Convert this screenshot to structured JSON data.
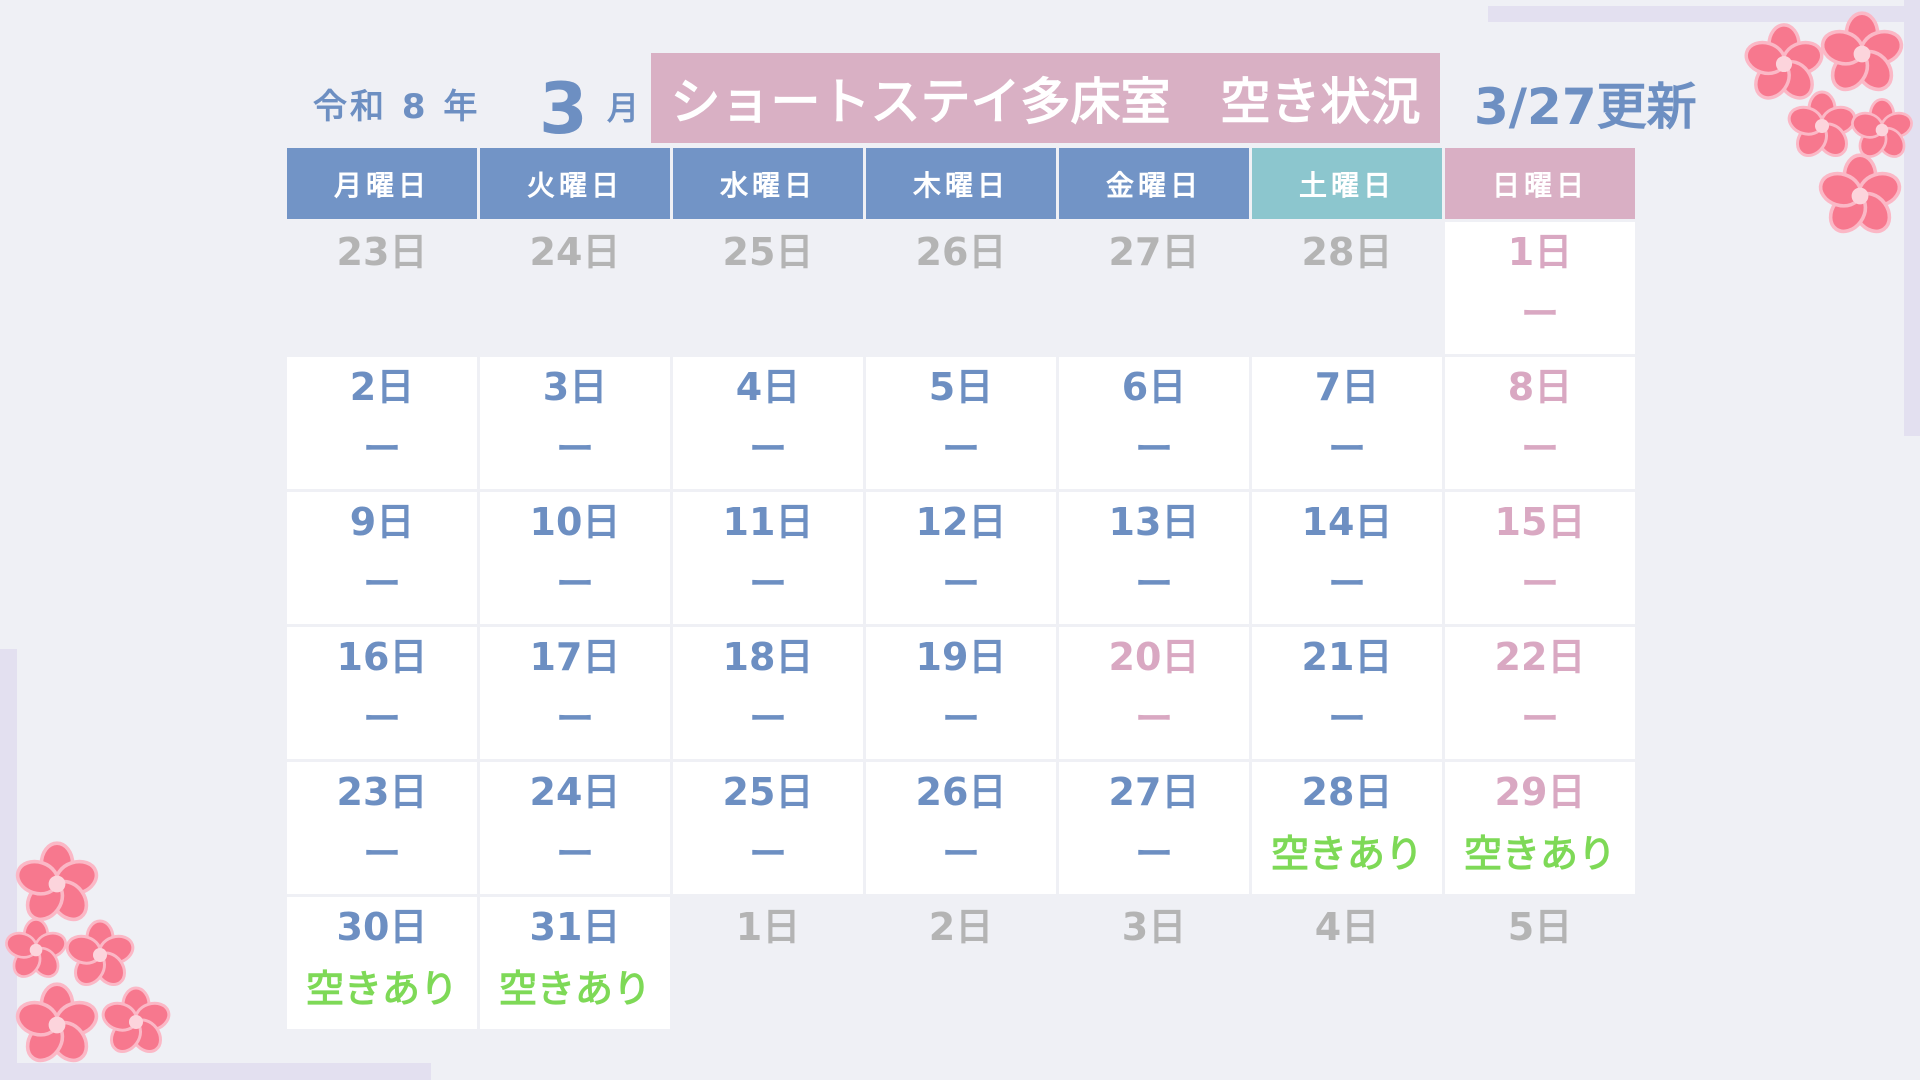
{
  "header": {
    "era_year": "令和 8 年",
    "month": "3",
    "month_unit": "月",
    "title": "ショートステイ多床室　空き状況",
    "updated": "3/27更新"
  },
  "colors": {
    "weekday": "#6d8fc2",
    "holiday": "#d9a8c2",
    "other": "#b4b4b4",
    "open": "#7ed957"
  },
  "weekdays": [
    {
      "label": "月曜日",
      "color": "#7294c6"
    },
    {
      "label": "火曜日",
      "color": "#7294c6"
    },
    {
      "label": "水曜日",
      "color": "#7294c6"
    },
    {
      "label": "木曜日",
      "color": "#7294c6"
    },
    {
      "label": "金曜日",
      "color": "#7294c6"
    },
    {
      "label": "土曜日",
      "color": "#8cc6ce"
    },
    {
      "label": "日曜日",
      "color": "#d9afc4"
    }
  ],
  "weeks": [
    [
      {
        "day": "23日",
        "kind": "other"
      },
      {
        "day": "24日",
        "kind": "other"
      },
      {
        "day": "25日",
        "kind": "other"
      },
      {
        "day": "26日",
        "kind": "other"
      },
      {
        "day": "27日",
        "kind": "other"
      },
      {
        "day": "28日",
        "kind": "other"
      },
      {
        "day": "1日",
        "kind": "holiday",
        "status": "ー"
      }
    ],
    [
      {
        "day": "2日",
        "kind": "weekday",
        "status": "ー"
      },
      {
        "day": "3日",
        "kind": "weekday",
        "status": "ー"
      },
      {
        "day": "4日",
        "kind": "weekday",
        "status": "ー"
      },
      {
        "day": "5日",
        "kind": "weekday",
        "status": "ー"
      },
      {
        "day": "6日",
        "kind": "weekday",
        "status": "ー"
      },
      {
        "day": "7日",
        "kind": "weekday",
        "status": "ー"
      },
      {
        "day": "8日",
        "kind": "holiday",
        "status": "ー"
      }
    ],
    [
      {
        "day": "9日",
        "kind": "weekday",
        "status": "ー"
      },
      {
        "day": "10日",
        "kind": "weekday",
        "status": "ー"
      },
      {
        "day": "11日",
        "kind": "weekday",
        "status": "ー"
      },
      {
        "day": "12日",
        "kind": "weekday",
        "status": "ー"
      },
      {
        "day": "13日",
        "kind": "weekday",
        "status": "ー"
      },
      {
        "day": "14日",
        "kind": "weekday",
        "status": "ー"
      },
      {
        "day": "15日",
        "kind": "holiday",
        "status": "ー"
      }
    ],
    [
      {
        "day": "16日",
        "kind": "weekday",
        "status": "ー"
      },
      {
        "day": "17日",
        "kind": "weekday",
        "status": "ー"
      },
      {
        "day": "18日",
        "kind": "weekday",
        "status": "ー"
      },
      {
        "day": "19日",
        "kind": "weekday",
        "status": "ー"
      },
      {
        "day": "20日",
        "kind": "holiday",
        "status": "ー"
      },
      {
        "day": "21日",
        "kind": "weekday",
        "status": "ー"
      },
      {
        "day": "22日",
        "kind": "holiday",
        "status": "ー"
      }
    ],
    [
      {
        "day": "23日",
        "kind": "weekday",
        "status": "ー"
      },
      {
        "day": "24日",
        "kind": "weekday",
        "status": "ー"
      },
      {
        "day": "25日",
        "kind": "weekday",
        "status": "ー"
      },
      {
        "day": "26日",
        "kind": "weekday",
        "status": "ー"
      },
      {
        "day": "27日",
        "kind": "weekday",
        "status": "ー"
      },
      {
        "day": "28日",
        "kind": "weekday",
        "status": "空きあり",
        "open": true
      },
      {
        "day": "29日",
        "kind": "holiday",
        "status": "空きあり",
        "open": true
      }
    ],
    [
      {
        "day": "30日",
        "kind": "weekday",
        "status": "空きあり",
        "open": true
      },
      {
        "day": "31日",
        "kind": "weekday",
        "status": "空きあり",
        "open": true
      },
      {
        "day": "1日",
        "kind": "other"
      },
      {
        "day": "2日",
        "kind": "other"
      },
      {
        "day": "3日",
        "kind": "other"
      },
      {
        "day": "4日",
        "kind": "other"
      },
      {
        "day": "5日",
        "kind": "other"
      }
    ]
  ]
}
